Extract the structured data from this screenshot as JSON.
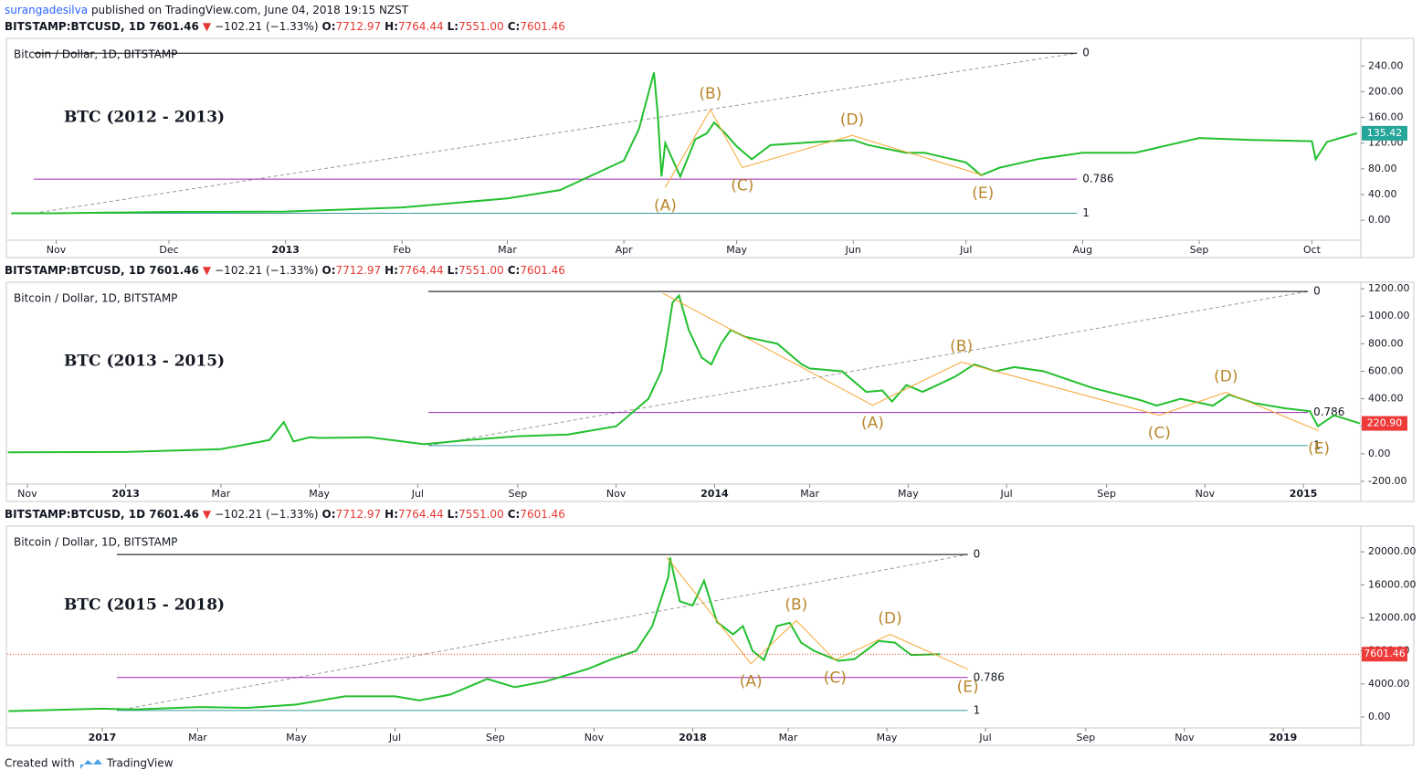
{
  "header": {
    "user": "surangadesilva",
    "text": "published on TradingView.com, June 04, 2018 19:15 NZST"
  },
  "footer": {
    "text": "Created with",
    "brand": "TradingView"
  },
  "chart_data": [
    {
      "type": "line",
      "symbol": "BITSTAMP:BTCUSD, 1D  7601.46",
      "arrow": "▼",
      "change": "−102.21 (−1.33%)",
      "ohlc": [
        {
          "label": "O:",
          "value": "7712.97"
        },
        {
          "label": "H:",
          "value": "7764.44"
        },
        {
          "label": "L:",
          "value": "7551.00"
        },
        {
          "label": "C:",
          "value": "7601.46"
        }
      ],
      "title": "Bitcoin / Dollar, 1D, BITSTAMP",
      "annotation": "BTC (2012 - 2013)",
      "color": "#22c02e",
      "x": [
        -12,
        0,
        30,
        61,
        92,
        120,
        134,
        144,
        151,
        155,
        159,
        160,
        161,
        162,
        166,
        170,
        173,
        175,
        178,
        181,
        185,
        190,
        200,
        212,
        216,
        226,
        231,
        242,
        246,
        251,
        261,
        273,
        287,
        304,
        318,
        334,
        335,
        338,
        346
      ],
      "values": [
        11,
        11,
        13,
        13.5,
        20,
        34,
        47,
        74,
        93,
        142,
        230,
        165,
        68,
        120,
        68,
        126,
        135,
        152,
        135,
        115,
        95,
        117,
        121,
        125,
        117,
        105,
        105,
        90,
        70,
        82,
        95,
        105,
        105,
        128,
        125,
        123,
        95,
        122,
        135.42
      ],
      "last_label": "135.42",
      "last_color": "#26a69a",
      "price_line": false,
      "xlim": [
        -13,
        347
      ],
      "xticks": [
        {
          "value": 0,
          "label": "Nov"
        },
        {
          "value": 30,
          "label": "Dec"
        },
        {
          "value": 61,
          "label": "2013"
        },
        {
          "value": 92,
          "label": "Feb"
        },
        {
          "value": 120,
          "label": "Mar"
        },
        {
          "value": 151,
          "label": "Apr"
        },
        {
          "value": 181,
          "label": "May"
        },
        {
          "value": 212,
          "label": "Jun"
        },
        {
          "value": 242,
          "label": "Jul"
        },
        {
          "value": 273,
          "label": "Aug"
        },
        {
          "value": 304,
          "label": "Sep"
        },
        {
          "value": 334,
          "label": "Oct"
        }
      ],
      "ylim": [
        -31,
        283
      ],
      "yticks": [
        {
          "value": 0,
          "label": "0.00"
        },
        {
          "value": 40,
          "label": "40.00"
        },
        {
          "value": 80,
          "label": "80.00"
        },
        {
          "value": 120,
          "label": "120.00"
        },
        {
          "value": 160,
          "label": "160.00"
        },
        {
          "value": 200,
          "label": "200.00"
        },
        {
          "value": 240,
          "label": "240.00"
        }
      ],
      "fib_x": [
        -6,
        271.5
      ],
      "fib": [
        {
          "label": "0",
          "value": 260,
          "color": "#000000",
          "text_color": "#333333"
        },
        {
          "label": "0.786",
          "value": 64,
          "color": "#9c27b0",
          "text_color": "#aa55ee"
        },
        {
          "label": "1",
          "value": 11,
          "color": "#3a9a9a",
          "text_color": "#4a78d0"
        }
      ],
      "wave_color": "#f7a531",
      "wave_text_color": "#b8862b",
      "waves": [
        {
          "label": "(A)",
          "x": 162,
          "y": 51,
          "position": "below"
        },
        {
          "label": "(B)",
          "x": 174,
          "y": 172,
          "position": "above"
        },
        {
          "label": "(C)",
          "x": 182.5,
          "y": 82,
          "position": "below"
        },
        {
          "label": "(D)",
          "x": 211.7,
          "y": 132,
          "position": "above"
        },
        {
          "label": "(E)",
          "x": 246.5,
          "y": 70,
          "position": "below"
        }
      ]
    },
    {
      "type": "line",
      "symbol": "BITSTAMP:BTCUSD, 1D  7601.46",
      "arrow": "▼",
      "change": "−102.21 (−1.33%)",
      "ohlc": [
        {
          "label": "O:",
          "value": "7712.97"
        },
        {
          "label": "H:",
          "value": "7764.44"
        },
        {
          "label": "L:",
          "value": "7551.00"
        },
        {
          "label": "C:",
          "value": "7601.46"
        }
      ],
      "title": "Bitcoin / Dollar, 1D, BITSTAMP",
      "annotation": "BTC (2013 - 2015)",
      "color": "#22c02e",
      "x": [
        -12,
        61,
        120,
        150,
        159,
        165,
        175,
        181,
        212,
        246,
        273,
        304,
        335,
        365,
        385,
        393,
        396,
        400,
        404,
        410,
        418,
        424,
        430,
        436,
        445,
        465,
        480,
        485,
        505,
        520,
        530,
        536,
        545,
        555,
        575,
        587,
        600,
        612,
        630,
        660,
        690,
        700,
        715,
        735,
        745,
        760,
        780,
        795,
        800,
        810,
        826
      ],
      "values": [
        11,
        13,
        34,
        100,
        230,
        90,
        120,
        115,
        120,
        70,
        100,
        128,
        140,
        200,
        400,
        600,
        800,
        1100,
        1150,
        900,
        700,
        650,
        800,
        900,
        850,
        800,
        650,
        620,
        600,
        450,
        460,
        380,
        500,
        450,
        560,
        650,
        600,
        630,
        600,
        480,
        390,
        350,
        400,
        350,
        430,
        370,
        330,
        310,
        200,
        280,
        220.9
      ],
      "last_label": "220.90",
      "last_color": "#ef3a3a",
      "price_line": false,
      "xlim": [
        -12.4,
        826.6
      ],
      "xticks": [
        {
          "value": 0,
          "label": "Nov"
        },
        {
          "value": 61,
          "label": "2013"
        },
        {
          "value": 120,
          "label": "Mar"
        },
        {
          "value": 181,
          "label": "May"
        },
        {
          "value": 242,
          "label": "Jul"
        },
        {
          "value": 304,
          "label": "Sep"
        },
        {
          "value": 365,
          "label": "Nov"
        },
        {
          "value": 426,
          "label": "2014"
        },
        {
          "value": 485,
          "label": "Mar"
        },
        {
          "value": 546,
          "label": "May"
        },
        {
          "value": 607,
          "label": "Jul"
        },
        {
          "value": 669,
          "label": "Sep"
        },
        {
          "value": 730,
          "label": "Nov"
        },
        {
          "value": 791,
          "label": "2015"
        }
      ],
      "ylim": [
        -220,
        1247
      ],
      "yticks": [
        {
          "value": -200,
          "label": "-200.00"
        },
        {
          "value": 0,
          "label": "0.00"
        },
        {
          "value": 200,
          "label": "200.00"
        },
        {
          "value": 400,
          "label": "400.00"
        },
        {
          "value": 600,
          "label": "600.00"
        },
        {
          "value": 800,
          "label": "800.00"
        },
        {
          "value": 1000,
          "label": "1000.00"
        },
        {
          "value": 1200,
          "label": "1200.00"
        }
      ],
      "fib_x": [
        248.6,
        793.8
      ],
      "fib": [
        {
          "label": "0",
          "value": 1180,
          "color": "#000000",
          "text_color": "#333333"
        },
        {
          "label": "0.786",
          "value": 300,
          "color": "#9c27b0",
          "text_color": "#aa55ee"
        },
        {
          "label": "1",
          "value": 60,
          "color": "#3a9a9a",
          "text_color": "#4a78d0"
        }
      ],
      "wave_color": "#f7a531",
      "wave_text_color": "#b8862b",
      "waves": [
        {
          "label": null,
          "x": 394,
          "y": 1167,
          "position": "above"
        },
        {
          "label": "(A)",
          "x": 524,
          "y": 353,
          "position": "below"
        },
        {
          "label": "(B)",
          "x": 579,
          "y": 667,
          "position": "above"
        },
        {
          "label": "(C)",
          "x": 701.7,
          "y": 280,
          "position": "below"
        },
        {
          "label": "(D)",
          "x": 743,
          "y": 447,
          "position": "above"
        },
        {
          "label": "(E)",
          "x": 800.6,
          "y": 167,
          "position": "below"
        }
      ]
    },
    {
      "type": "line",
      "symbol": "BITSTAMP:BTCUSD, 1D  7601.46",
      "arrow": "▼",
      "change": "−102.21 (−1.33%)",
      "ohlc": [
        {
          "label": "O:",
          "value": "7712.97"
        },
        {
          "label": "H:",
          "value": "7764.44"
        },
        {
          "label": "L:",
          "value": "7551.00"
        },
        {
          "label": "C:",
          "value": "7601.46"
        }
      ],
      "title": "Bitcoin / Dollar, 1D, BITSTAMP",
      "annotation": "BTC (2015 - 2018)",
      "color": "#22c02e",
      "x": [
        -58,
        0,
        20,
        60,
        90,
        120,
        150,
        181,
        196,
        215,
        238,
        255,
        274,
        300,
        315,
        330,
        340,
        350,
        351,
        357,
        365,
        372,
        380,
        390,
        396,
        402,
        409,
        417,
        425,
        432,
        440,
        455,
        465,
        480,
        490,
        500,
        518
      ],
      "values": [
        700,
        1000,
        900,
        1200,
        1100,
        1500,
        2500,
        2500,
        2000,
        2700,
        4600,
        3600,
        4300,
        5800,
        7000,
        8000,
        11000,
        17000,
        19300,
        14000,
        13500,
        16500,
        11500,
        10000,
        11000,
        8000,
        6900,
        11000,
        11400,
        9000,
        8000,
        6800,
        7000,
        9200,
        9000,
        7500,
        7601.46
      ],
      "last_label": "7601.46",
      "last_color": "#ef3a3a",
      "price_line": true,
      "xlim": [
        -58.7,
        778
      ],
      "xticks": [
        {
          "value": 0,
          "label": "2017"
        },
        {
          "value": 59,
          "label": "Mar"
        },
        {
          "value": 120,
          "label": "May"
        },
        {
          "value": 181,
          "label": "Jul"
        },
        {
          "value": 243,
          "label": "Sep"
        },
        {
          "value": 304,
          "label": "Nov"
        },
        {
          "value": 365,
          "label": "2018"
        },
        {
          "value": 424,
          "label": "Mar"
        },
        {
          "value": 485,
          "label": "May"
        },
        {
          "value": 546,
          "label": "Jul"
        },
        {
          "value": 608,
          "label": "Sep"
        },
        {
          "value": 669,
          "label": "Nov"
        },
        {
          "value": 730,
          "label": "2019"
        }
      ],
      "ylim": [
        -1333,
        23111
      ],
      "yticks": [
        {
          "value": 0,
          "label": "0.00"
        },
        {
          "value": 4000,
          "label": "4000.00"
        },
        {
          "value": 8000,
          "label": "8000.00"
        },
        {
          "value": 12000,
          "label": "12000.00"
        },
        {
          "value": 16000,
          "label": "16000.00"
        },
        {
          "value": 20000,
          "label": "20000.00"
        }
      ],
      "fib_x": [
        9,
        535
      ],
      "fib": [
        {
          "label": "0",
          "value": 19667,
          "color": "#000000",
          "text_color": "#333333"
        },
        {
          "label": "0.786",
          "value": 4778,
          "color": "#9c27b0",
          "text_color": "#aa55ee"
        },
        {
          "label": "1",
          "value": 778,
          "color": "#3a9a9a",
          "text_color": "#4a78d0"
        }
      ],
      "wave_color": "#f7a531",
      "wave_text_color": "#b8862b",
      "waves": [
        {
          "label": null,
          "x": 349,
          "y": 19333,
          "position": "above"
        },
        {
          "label": "(A)",
          "x": 401,
          "y": 6444,
          "position": "below"
        },
        {
          "label": "(B)",
          "x": 429,
          "y": 11667,
          "position": "above"
        },
        {
          "label": "(C)",
          "x": 453,
          "y": 6889,
          "position": "below"
        },
        {
          "label": "(D)",
          "x": 487,
          "y": 10000,
          "position": "above"
        },
        {
          "label": "(E)",
          "x": 535,
          "y": 5778,
          "position": "below"
        }
      ]
    }
  ]
}
